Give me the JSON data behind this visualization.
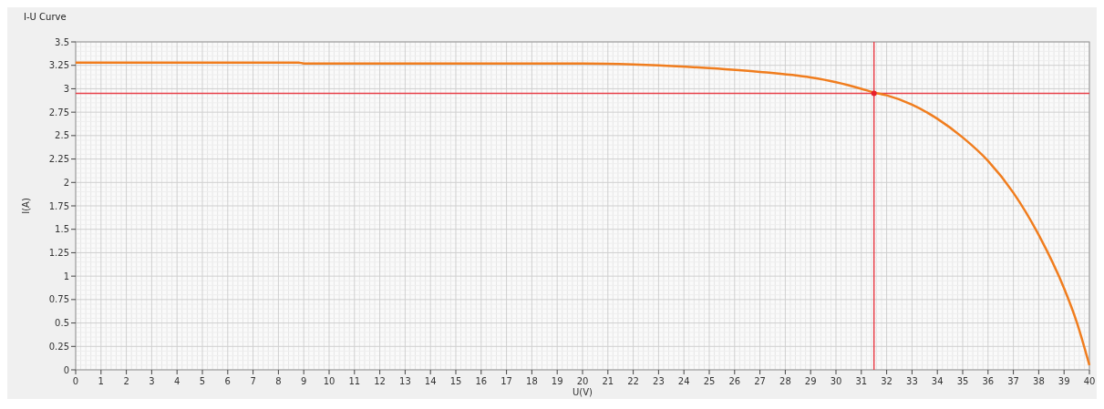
{
  "chart_data": {
    "type": "line",
    "title": "I-U Curve",
    "xlabel": "U(V)",
    "ylabel": "I(A)",
    "xlim": [
      0,
      40
    ],
    "ylim": [
      0,
      3.5
    ],
    "xticks": [
      0,
      1,
      2,
      3,
      4,
      5,
      6,
      7,
      8,
      9,
      10,
      11,
      12,
      13,
      14,
      15,
      16,
      17,
      18,
      19,
      20,
      21,
      22,
      23,
      24,
      25,
      26,
      27,
      28,
      29,
      30,
      31,
      32,
      33,
      34,
      35,
      36,
      37,
      38,
      39,
      40
    ],
    "yticks": [
      0,
      0.25,
      0.5,
      0.75,
      1,
      1.25,
      1.5,
      1.75,
      2,
      2.25,
      2.5,
      2.75,
      3,
      3.25,
      3.5
    ],
    "grid": true,
    "marker": "none",
    "line_style": "solid",
    "series": [
      {
        "color": "#f07d1e",
        "x": [
          0,
          8.8,
          9,
          20,
          22,
          23,
          25,
          27,
          29,
          30,
          31,
          31.5,
          32,
          33,
          34,
          35,
          36,
          37,
          38,
          39,
          39.5,
          40
        ],
        "values": [
          3.28,
          3.28,
          3.27,
          3.27,
          3.26,
          3.25,
          3.22,
          3.18,
          3.12,
          3.07,
          3.0,
          2.96,
          2.93,
          2.83,
          2.68,
          2.48,
          2.23,
          1.89,
          1.44,
          0.87,
          0.51,
          0.05
        ]
      },
      {
        "type": "scatter",
        "color": "#e8202a",
        "marker": "circle",
        "x": [
          31.5
        ],
        "values": [
          2.95
        ]
      }
    ],
    "ref_lines": [
      {
        "axis": "y",
        "value": 2.95,
        "color": "#e8404a"
      },
      {
        "axis": "x",
        "value": 31.5,
        "color": "#e8404a"
      }
    ]
  }
}
